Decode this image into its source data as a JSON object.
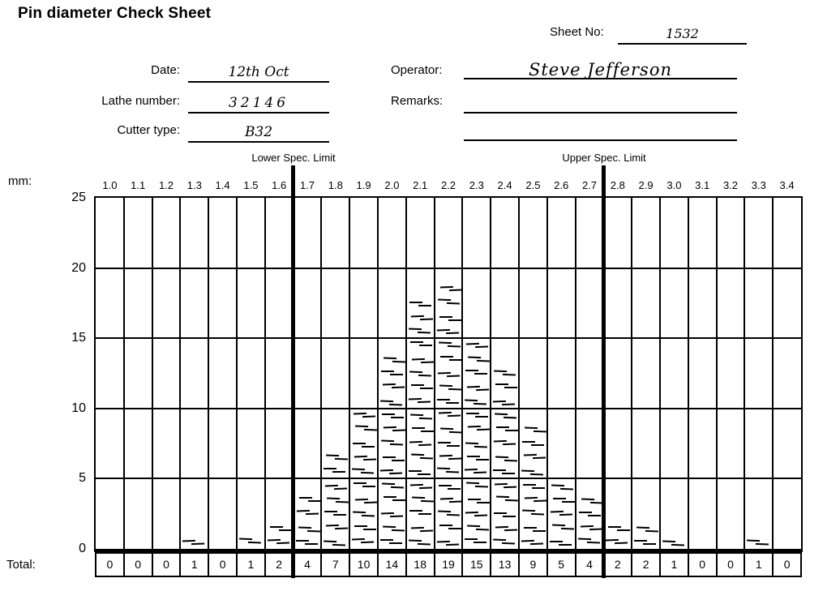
{
  "title": "Pin diameter Check Sheet",
  "fields": {
    "sheet_no_label": "Sheet No:",
    "sheet_no_value": "1532",
    "date_label": "Date:",
    "date_value": "12th Oct",
    "operator_label": "Operator:",
    "operator_value": "Steve Jefferson",
    "lathe_label": "Lathe number:",
    "lathe_value": "32146",
    "remarks_label": "Remarks:",
    "remarks_value": "",
    "cutter_label": "Cutter type:",
    "cutter_value": "B32"
  },
  "chart_data": {
    "type": "bar",
    "subtype": "tally-check-sheet-histogram",
    "title": "Pin diameter Check Sheet",
    "unit_label": "mm:",
    "total_label": "Total:",
    "lower_spec_label": "Lower Spec. Limit",
    "upper_spec_label": "Upper Spec. Limit",
    "lower_spec_boundary_after_category": "1.6",
    "upper_spec_boundary_after_category": "2.7",
    "lower_spec_col_index": 7,
    "upper_spec_col_index": 18,
    "categories": [
      "1.0",
      "1.1",
      "1.2",
      "1.3",
      "1.4",
      "1.5",
      "1.6",
      "1.7",
      "1.8",
      "1.9",
      "2.0",
      "2.1",
      "2.2",
      "2.3",
      "2.4",
      "2.5",
      "2.6",
      "2.7",
      "2.8",
      "2.9",
      "3.0",
      "3.1",
      "3.2",
      "3.3",
      "3.4"
    ],
    "values": [
      0,
      0,
      0,
      1,
      0,
      1,
      2,
      4,
      7,
      10,
      14,
      18,
      19,
      15,
      13,
      9,
      5,
      4,
      2,
      2,
      1,
      0,
      0,
      1,
      0
    ],
    "totals": [
      0,
      0,
      0,
      1,
      0,
      1,
      2,
      4,
      7,
      10,
      14,
      18,
      19,
      15,
      13,
      9,
      5,
      4,
      2,
      2,
      1,
      0,
      0,
      1,
      0
    ],
    "y_ticks": [
      0,
      5,
      10,
      15,
      20,
      25
    ],
    "ylim": [
      0,
      25
    ],
    "grid": true,
    "legend": "none",
    "mark_style": "hand-drawn slanted tally dashes stacked 5 per gridline interval"
  }
}
